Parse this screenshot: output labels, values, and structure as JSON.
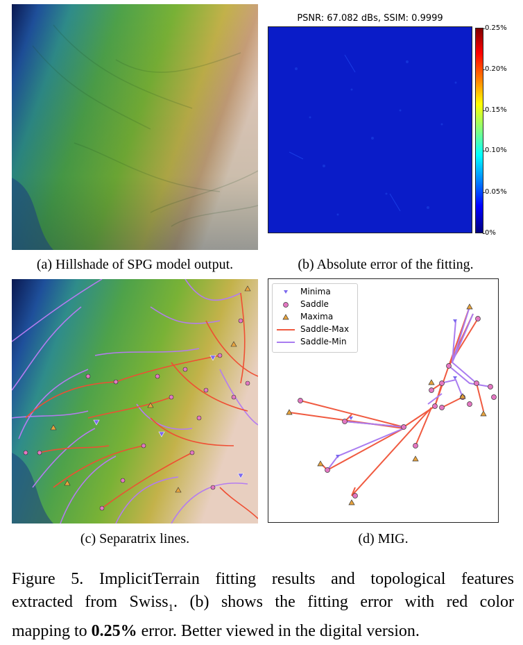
{
  "panel_b": {
    "title": "PSNR: 67.082 dBs, SSIM: 0.9999",
    "colorbar_ticks": [
      "0.25%",
      "0.20%",
      "0.15%",
      "0.10%",
      "0.05%",
      "0%"
    ]
  },
  "captions": {
    "a": "(a) Hillshade of SPG model output.",
    "b": "(b) Absolute error of the fitting.",
    "c": "(c) Separatrix lines.",
    "d": "(d) MIG."
  },
  "legend": [
    {
      "label": "Minima",
      "symbol": "triangle-down",
      "color": "#7b68ee"
    },
    {
      "label": "Saddle",
      "symbol": "circle",
      "color": "#e377c2"
    },
    {
      "label": "Maxima",
      "symbol": "triangle-up",
      "color": "#e8a33d"
    },
    {
      "label": "Saddle-Max",
      "symbol": "line",
      "color": "#f05a40"
    },
    {
      "label": "Saddle-Min",
      "symbol": "line",
      "color": "#a97cf0"
    }
  ],
  "figure_caption": {
    "line1": "Figure 5.  ImplicitTerrain fitting results and topological features",
    "line2_pre": "extracted from Swiss",
    "line2_sub": "1",
    "line2_post": ".  (b) shows the fitting error with red color",
    "line3_pre": "mapping to ",
    "line3_bold": "0.25%",
    "line3_post": " error. Better viewed in the digital version."
  }
}
